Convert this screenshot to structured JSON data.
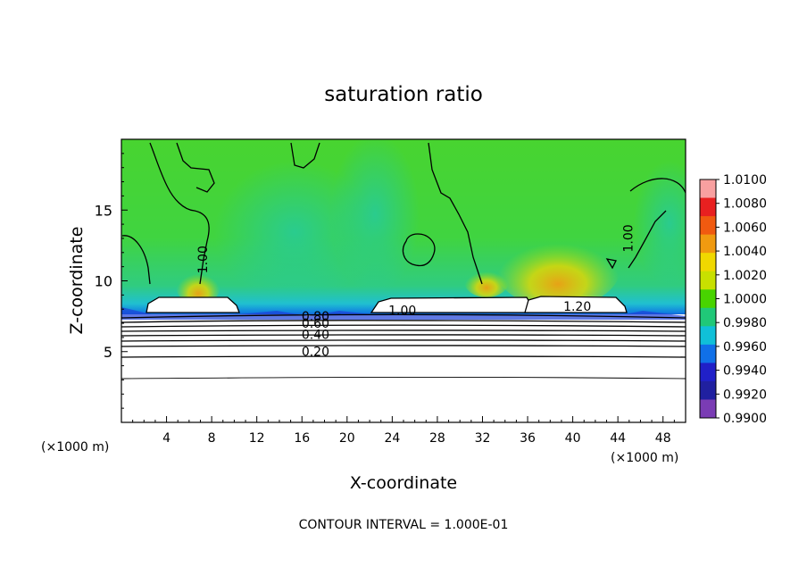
{
  "chart_data": {
    "type": "heatmap",
    "title": "saturation ratio",
    "xlabel": "X-coordinate",
    "ylabel": "Z-coordinate",
    "x_unit_label": "(×1000 m)",
    "z_unit_label": "(×1000 m)",
    "xlim": [
      0,
      50
    ],
    "ylim": [
      0,
      20
    ],
    "x_ticks": [
      4,
      8,
      12,
      16,
      20,
      24,
      28,
      32,
      36,
      40,
      44,
      48
    ],
    "y_ticks": [
      5,
      10,
      15
    ],
    "colorbar": {
      "ticks": [
        "1.0100",
        "1.0080",
        "1.0060",
        "1.0040",
        "1.0020",
        "1.0000",
        "0.9980",
        "0.9960",
        "0.9940",
        "0.9920",
        "0.9900"
      ],
      "colors": [
        "#f8a0a0",
        "#e82020",
        "#f05a10",
        "#f09a10",
        "#f0d800",
        "#c8e000",
        "#48d400",
        "#20c878",
        "#10c0d8",
        "#1070e8",
        "#2020c8",
        "#2020a0",
        "#7a3cb4"
      ]
    },
    "contour_labels": [
      {
        "text": "1.00",
        "x": 7.6,
        "z": 11.5
      },
      {
        "text": "1.00",
        "x": 45.3,
        "z": 13.0
      },
      {
        "text": "1.00",
        "x": 24.9,
        "z": 7.6
      },
      {
        "text": "1.20",
        "x": 40.4,
        "z": 7.9
      },
      {
        "text": "0.80",
        "x": 17.2,
        "z": 7.2
      },
      {
        "text": "0.60",
        "x": 17.2,
        "z": 6.7
      },
      {
        "text": "0.40",
        "x": 17.2,
        "z": 5.9
      },
      {
        "text": "0.20",
        "x": 17.2,
        "z": 4.7
      }
    ],
    "contour_interval": "CONTOUR INTERVAL = 1.000E-01"
  }
}
